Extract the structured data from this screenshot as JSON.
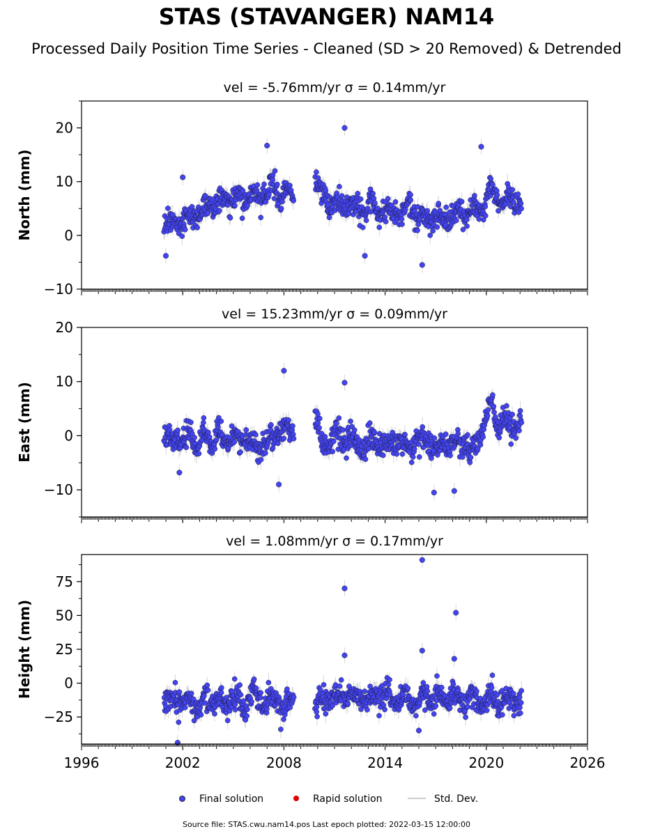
{
  "header": {
    "title": "STAS (STAVANGER) NAM14",
    "subtitle": "Processed Daily Position Time Series - Cleaned (SD > 20 Removed) & Detrended"
  },
  "legend": {
    "final_label": "Final solution",
    "rapid_label": "Rapid solution",
    "stddev_label": "Std. Dev.",
    "final_color": "#4444ee",
    "rapid_color": "#e00000",
    "stddev_color": "#bbbbbb"
  },
  "footer": {
    "source": "Source file: STAS.cwu.nam14.pos  Last epoch plotted: 2022-03-15 12:00:00"
  },
  "chart_data": [
    {
      "type": "scatter",
      "title": "vel = -5.76mm/yr   σ = 0.14mm/yr",
      "xlabel": "",
      "ylabel": "North (mm)",
      "xlim": [
        1996,
        2026
      ],
      "ylim": [
        -10,
        25
      ],
      "yticks": [
        -10,
        0,
        10,
        20
      ],
      "xticks": [
        1996,
        2002,
        2008,
        2014,
        2020,
        2026
      ],
      "grid": false,
      "series": [
        {
          "name": "Final solution",
          "x": [
            2000.9,
            2001.3,
            2001.7,
            2002.1,
            2002.5,
            2002.9,
            2003.3,
            2003.7,
            2004.1,
            2004.5,
            2004.9,
            2005.3,
            2005.7,
            2006.1,
            2006.5,
            2006.9,
            2007.3,
            2007.7,
            2008.1,
            2008.5,
            2009.9,
            2010.3,
            2010.7,
            2011.1,
            2011.5,
            2011.9,
            2012.3,
            2012.7,
            2013.1,
            2013.5,
            2013.9,
            2014.3,
            2014.7,
            2015.1,
            2015.5,
            2015.9,
            2016.3,
            2016.7,
            2017.1,
            2017.5,
            2017.9,
            2018.3,
            2018.7,
            2019.1,
            2019.5,
            2019.9,
            2020.3,
            2020.7,
            2021.1,
            2021.5,
            2021.9,
            2022.1
          ],
          "y": [
            2.0,
            1.5,
            3.0,
            2.5,
            4.0,
            3.5,
            5.5,
            6.5,
            6.0,
            7.0,
            6.0,
            7.5,
            6.5,
            7.0,
            7.5,
            8.0,
            9.0,
            8.0,
            7.5,
            7.0,
            10.0,
            7.0,
            6.0,
            5.5,
            5.0,
            6.5,
            5.0,
            4.5,
            6.0,
            4.5,
            5.0,
            4.0,
            5.0,
            4.5,
            6.0,
            3.5,
            3.0,
            4.0,
            2.5,
            3.0,
            3.5,
            4.5,
            4.0,
            5.0,
            4.5,
            6.0,
            8.5,
            7.0,
            6.0,
            6.5,
            6.0,
            5.5
          ],
          "extreme_points": [
            [
              2002.0,
              10.8
            ],
            [
              2007.0,
              16.7
            ],
            [
              2011.6,
              20.0
            ],
            [
              2016.2,
              -5.5
            ],
            [
              2019.7,
              16.5
            ],
            [
              2001.0,
              -3.8
            ],
            [
              2012.8,
              -3.8
            ]
          ]
        }
      ]
    },
    {
      "type": "scatter",
      "title": "vel = 15.23mm/yr   σ = 0.09mm/yr",
      "xlabel": "",
      "ylabel": "East (mm)",
      "xlim": [
        1996,
        2026
      ],
      "ylim": [
        -15,
        20
      ],
      "yticks": [
        -10,
        0,
        10,
        20
      ],
      "xticks": [
        1996,
        2002,
        2008,
        2014,
        2020,
        2026
      ],
      "grid": false,
      "series": [
        {
          "name": "Final solution",
          "x": [
            2000.9,
            2001.3,
            2001.7,
            2002.1,
            2002.5,
            2002.9,
            2003.3,
            2003.7,
            2004.1,
            2004.5,
            2004.9,
            2005.3,
            2005.7,
            2006.1,
            2006.5,
            2006.9,
            2007.3,
            2007.7,
            2008.1,
            2008.5,
            2009.9,
            2010.3,
            2010.7,
            2011.1,
            2011.5,
            2011.9,
            2012.3,
            2012.7,
            2013.1,
            2013.5,
            2013.9,
            2014.3,
            2014.7,
            2015.1,
            2015.5,
            2015.9,
            2016.3,
            2016.7,
            2017.1,
            2017.5,
            2017.9,
            2018.3,
            2018.7,
            2019.1,
            2019.5,
            2019.9,
            2020.3,
            2020.7,
            2021.1,
            2021.5,
            2021.9,
            2022.1
          ],
          "y": [
            1.0,
            -1.0,
            0.5,
            -1.5,
            0.0,
            -2.0,
            0.5,
            -1.0,
            1.0,
            -1.5,
            0.5,
            -2.0,
            0.0,
            -1.0,
            -2.5,
            0.0,
            -1.5,
            1.0,
            2.0,
            0.0,
            4.0,
            -3.0,
            -1.0,
            1.0,
            -2.0,
            0.5,
            -1.5,
            -2.5,
            0.0,
            -2.0,
            -1.0,
            -3.0,
            0.0,
            -1.5,
            -2.5,
            0.0,
            -2.0,
            -1.0,
            -3.0,
            -1.5,
            -0.5,
            -2.5,
            -1.0,
            -3.0,
            -1.0,
            3.5,
            6.0,
            2.0,
            3.0,
            1.5,
            2.0,
            2.5
          ],
          "extreme_points": [
            [
              2008.0,
              12.0
            ],
            [
              2007.7,
              -9.0
            ],
            [
              2011.6,
              9.8
            ],
            [
              2016.9,
              -10.5
            ],
            [
              2018.1,
              -10.2
            ],
            [
              2001.8,
              -6.8
            ]
          ]
        }
      ]
    },
    {
      "type": "scatter",
      "title": "vel = 1.08mm/yr   σ = 0.17mm/yr",
      "xlabel": "",
      "ylabel": "Height (mm)",
      "xlim": [
        1996,
        2026
      ],
      "ylim": [
        -45,
        95
      ],
      "yticks": [
        -25,
        0,
        25,
        50,
        75
      ],
      "xticks": [
        1996,
        2002,
        2008,
        2014,
        2020,
        2026
      ],
      "grid": false,
      "series": [
        {
          "name": "Final solution",
          "x": [
            2000.9,
            2001.3,
            2001.7,
            2002.1,
            2002.5,
            2002.9,
            2003.3,
            2003.7,
            2004.1,
            2004.5,
            2004.9,
            2005.3,
            2005.7,
            2006.1,
            2006.5,
            2006.9,
            2007.3,
            2007.7,
            2008.1,
            2008.5,
            2009.9,
            2010.3,
            2010.7,
            2011.1,
            2011.5,
            2011.9,
            2012.3,
            2012.7,
            2013.1,
            2013.5,
            2013.9,
            2014.3,
            2014.7,
            2015.1,
            2015.5,
            2015.9,
            2016.3,
            2016.7,
            2017.1,
            2017.5,
            2017.9,
            2018.3,
            2018.7,
            2019.1,
            2019.5,
            2019.9,
            2020.3,
            2020.7,
            2021.1,
            2021.5,
            2021.9,
            2022.1
          ],
          "y": [
            -12.0,
            -15.0,
            -10.0,
            -18.0,
            -12.0,
            -20.0,
            -10.0,
            -14.0,
            -12.0,
            -16.0,
            -11.0,
            -13.0,
            -15.0,
            -10.0,
            -12.0,
            -14.0,
            -11.0,
            -16.0,
            -20.0,
            -12.0,
            -14.0,
            -15.0,
            -10.0,
            -13.0,
            -11.0,
            -8.0,
            -12.0,
            -10.0,
            -13.0,
            -9.0,
            -7.0,
            -11.0,
            -12.0,
            -9.0,
            -13.0,
            -14.0,
            -10.0,
            -12.0,
            -11.0,
            -13.0,
            -10.0,
            -12.0,
            -14.0,
            -11.0,
            -13.0,
            -12.0,
            -10.0,
            -15.0,
            -13.0,
            -12.0,
            -14.0,
            -12.0
          ],
          "extreme_points": [
            [
              2011.6,
              70.0
            ],
            [
              2016.2,
              91.0
            ],
            [
              2016.2,
              24.0
            ],
            [
              2018.2,
              52.0
            ],
            [
              2018.1,
              18.0
            ],
            [
              2011.6,
              20.5
            ],
            [
              2001.7,
              -44.0
            ],
            [
              2016.0,
              -35.0
            ]
          ]
        }
      ]
    }
  ]
}
